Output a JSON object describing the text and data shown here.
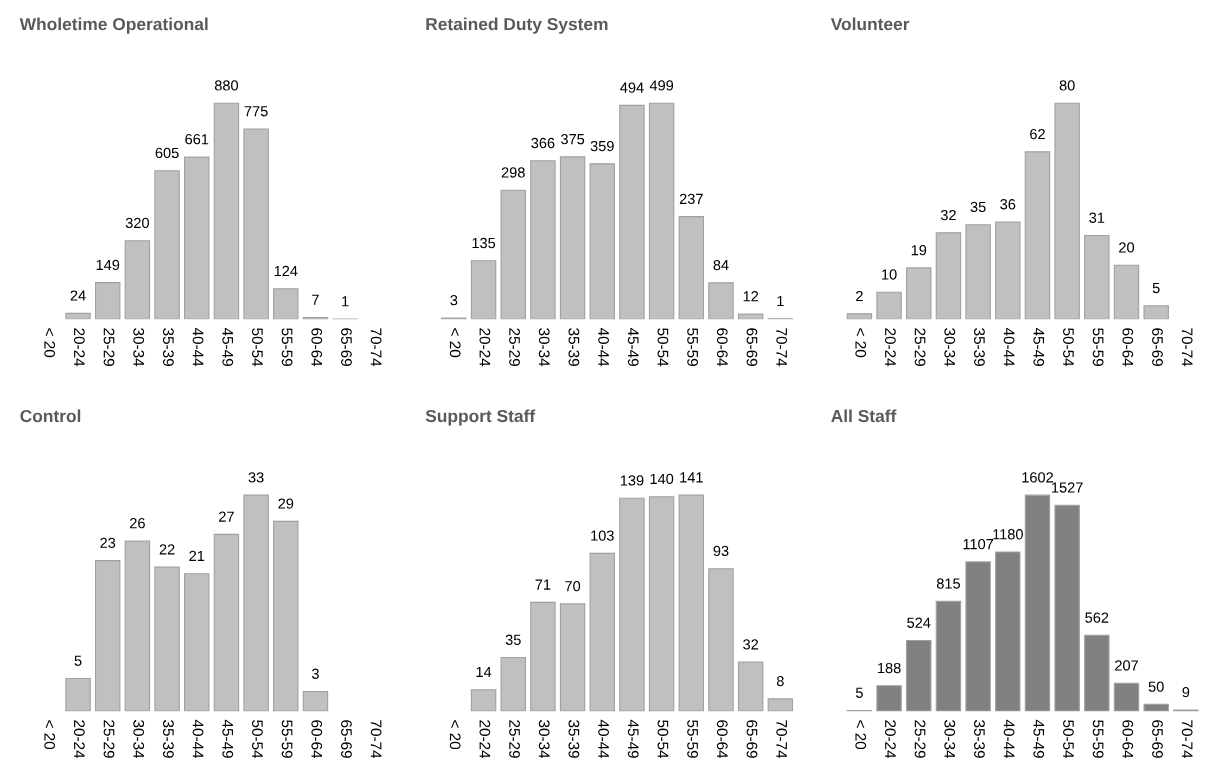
{
  "chart_data": [
    {
      "type": "bar",
      "title": "Wholetime Operational",
      "categories": [
        "< 20",
        "20-24",
        "25-29",
        "30-34",
        "35-39",
        "40-44",
        "45-49",
        "50-54",
        "55-59",
        "60-64",
        "65-69",
        "70-74"
      ],
      "values": [
        null,
        24,
        149,
        320,
        605,
        661,
        880,
        775,
        124,
        7,
        1,
        null
      ],
      "color": "#c0c0c0",
      "data_labels": true,
      "grid": false,
      "legend": false
    },
    {
      "type": "bar",
      "title": "Retained Duty System",
      "categories": [
        "< 20",
        "20-24",
        "25-29",
        "30-34",
        "35-39",
        "40-44",
        "45-49",
        "50-54",
        "55-59",
        "60-64",
        "65-69",
        "70-74"
      ],
      "values": [
        3,
        135,
        298,
        366,
        375,
        359,
        494,
        499,
        237,
        84,
        12,
        1
      ],
      "color": "#c0c0c0",
      "data_labels": true,
      "grid": false,
      "legend": false
    },
    {
      "type": "bar",
      "title": "Volunteer",
      "categories": [
        "< 20",
        "20-24",
        "25-29",
        "30-34",
        "35-39",
        "40-44",
        "45-49",
        "50-54",
        "55-59",
        "60-64",
        "65-69",
        "70-74"
      ],
      "values": [
        2,
        10,
        19,
        32,
        35,
        36,
        62,
        80,
        31,
        20,
        5,
        null
      ],
      "color": "#c0c0c0",
      "data_labels": true,
      "grid": false,
      "legend": false
    },
    {
      "type": "bar",
      "title": "Control",
      "categories": [
        "< 20",
        "20-24",
        "25-29",
        "30-34",
        "35-39",
        "40-44",
        "45-49",
        "50-54",
        "55-59",
        "60-64",
        "65-69",
        "70-74"
      ],
      "values": [
        null,
        5,
        23,
        26,
        22,
        21,
        27,
        33,
        29,
        3,
        null,
        null
      ],
      "color": "#c0c0c0",
      "data_labels": true,
      "grid": false,
      "legend": false
    },
    {
      "type": "bar",
      "title": "Support Staff",
      "categories": [
        "< 20",
        "20-24",
        "25-29",
        "30-34",
        "35-39",
        "40-44",
        "45-49",
        "50-54",
        "55-59",
        "60-64",
        "65-69",
        "70-74"
      ],
      "values": [
        null,
        14,
        35,
        71,
        70,
        103,
        139,
        140,
        141,
        93,
        32,
        8
      ],
      "color": "#c0c0c0",
      "data_labels": true,
      "grid": false,
      "legend": false
    },
    {
      "type": "bar",
      "title": "All Staff",
      "categories": [
        "< 20",
        "20-24",
        "25-29",
        "30-34",
        "35-39",
        "40-44",
        "45-49",
        "50-54",
        "55-59",
        "60-64",
        "65-69",
        "70-74"
      ],
      "values": [
        5,
        188,
        524,
        815,
        1107,
        1180,
        1602,
        1527,
        562,
        207,
        50,
        9
      ],
      "color": "#808080",
      "data_labels": true,
      "grid": false,
      "legend": false
    }
  ]
}
